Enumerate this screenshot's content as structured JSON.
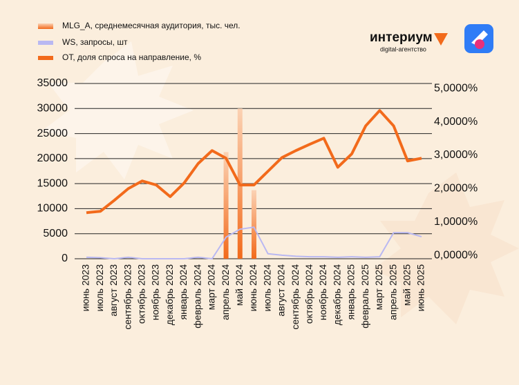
{
  "brand": {
    "name": "интериум",
    "tagline": "digital-агентство"
  },
  "chart_data": {
    "type": "combo",
    "categories": [
      "июнь 2023",
      "июль 2023",
      "август 2023",
      "сентябрь 2023",
      "октябрь 2023",
      "ноябрь 2023",
      "декабрь 2023",
      "январь 2024",
      "февраль 2024",
      "март 2024",
      "апрель 2024",
      "май 2024",
      "июнь 2024",
      "июль 2024",
      "август 2024",
      "сентябрь 2024",
      "октябрь 2024",
      "ноябрь 2024",
      "декабрь 2024",
      "январь 2025",
      "февраль 2025",
      "март 2025",
      "апрель 2025",
      "май 2025",
      "июнь 2025"
    ],
    "series": [
      {
        "name": "MLG_A, среднемесячная аудитория, тыс. чел.",
        "type": "bar",
        "color": "#f26a1b",
        "values": [
          null,
          null,
          null,
          null,
          null,
          null,
          null,
          null,
          null,
          null,
          21300,
          30000,
          13700,
          null,
          null,
          null,
          null,
          null,
          null,
          null,
          null,
          null,
          null,
          null,
          null
        ]
      },
      {
        "name": "WS, запросы, шт",
        "type": "line",
        "color": "#b9b8f2",
        "values": [
          300,
          200,
          0,
          300,
          0,
          0,
          0,
          0,
          300,
          0,
          4300,
          5900,
          6300,
          1000,
          700,
          500,
          400,
          400,
          300,
          400,
          300,
          400,
          5200,
          5200,
          4400
        ]
      },
      {
        "name": "OT, доля спроса на направление, %",
        "type": "line",
        "axis": "y2",
        "color": "#f26a1b",
        "values": [
          1.28,
          1.32,
          1.65,
          2.0,
          2.23,
          2.11,
          1.76,
          2.17,
          2.75,
          3.14,
          2.91,
          2.11,
          2.11,
          2.52,
          2.93,
          3.14,
          3.33,
          3.51,
          2.64,
          3.04,
          3.88,
          4.34,
          3.88,
          2.83,
          2.91
        ]
      }
    ],
    "ylim": [
      0,
      35000
    ],
    "yticks": [
      0,
      5000,
      10000,
      15000,
      20000,
      25000,
      30000,
      35000
    ],
    "y2lim": [
      -0.1,
      5.15
    ],
    "y2ticks": [
      {
        "value": 0,
        "label": "0,0000%"
      },
      {
        "value": 1,
        "label": "1,0000%"
      },
      {
        "value": 2,
        "label": "2,0000%"
      },
      {
        "value": 3,
        "label": "3,0000%"
      },
      {
        "value": 4,
        "label": "4,0000%"
      },
      {
        "value": 5,
        "label": "5,0000%"
      }
    ],
    "grid": true
  }
}
